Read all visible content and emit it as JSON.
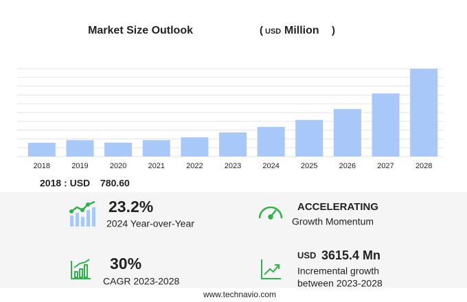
{
  "chart_data": {
    "type": "bar",
    "title": "Market Size Outlook",
    "unit": {
      "open": "(",
      "currency": "USD",
      "name": "Million",
      "close": ")"
    },
    "categories": [
      "2018",
      "2019",
      "2020",
      "2021",
      "2022",
      "2023",
      "2024",
      "2025",
      "2026",
      "2027",
      "2028"
    ],
    "values": [
      780.6,
      930,
      790,
      930,
      1090,
      1370,
      1688,
      2080,
      2700,
      3590,
      4985
    ],
    "color": "#a9c8fa",
    "ylim": [
      0,
      5000
    ],
    "yticks": [
      0,
      500,
      1000,
      1500,
      2000,
      2500,
      3000,
      3500,
      4000,
      4500,
      5000
    ],
    "show_ytick_labels": false,
    "grid": true
  },
  "base": {
    "label": "2018 : USD",
    "value": "780.60"
  },
  "stats": [
    {
      "value": "23.2%",
      "label": "2024 Year-over-Year"
    },
    {
      "value": "ACCELERATING",
      "label": "Growth Momentum"
    },
    {
      "value": "30%",
      "label": "CAGR 2023-2028"
    },
    {
      "prefix": "USD",
      "value": "3615.4 Mn",
      "label": "Incremental growth",
      "label2": "between 2023-2028"
    }
  ],
  "footer": "www.technavio.com"
}
